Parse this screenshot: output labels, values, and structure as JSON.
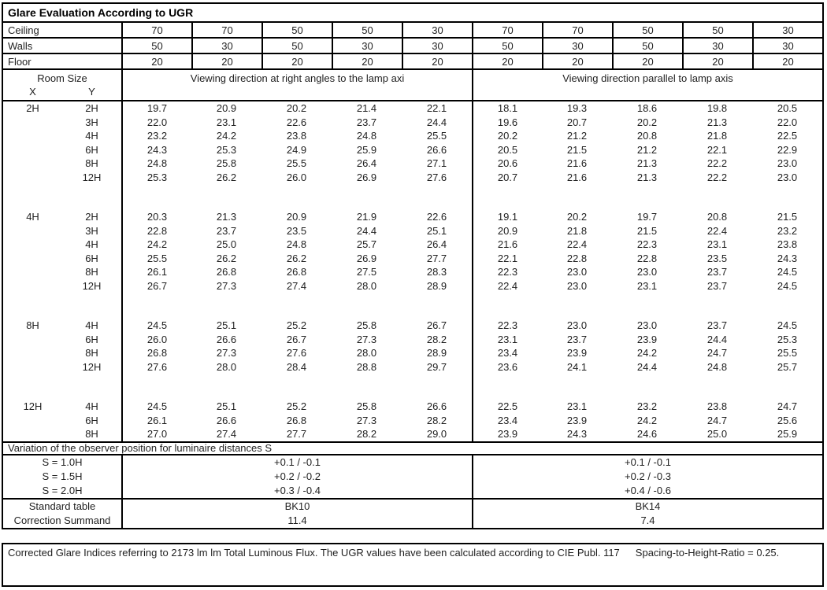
{
  "title": "Glare Evaluation According to UGR",
  "surface_rows": [
    {
      "label": "Ceiling",
      "values": [
        "70",
        "70",
        "50",
        "50",
        "30",
        "70",
        "70",
        "50",
        "50",
        "30"
      ]
    },
    {
      "label": "Walls",
      "values": [
        "50",
        "30",
        "50",
        "30",
        "30",
        "50",
        "30",
        "50",
        "30",
        "30"
      ]
    },
    {
      "label": "Floor",
      "values": [
        "20",
        "20",
        "20",
        "20",
        "20",
        "20",
        "20",
        "20",
        "20",
        "20"
      ]
    }
  ],
  "header": {
    "room_size_label": "Room Size",
    "x_label": "X",
    "y_label": "Y",
    "left_span": "Viewing direction at right angles to the lamp axi",
    "right_span": "Viewing direction parallel to lamp axis"
  },
  "blocks": [
    {
      "x": "2H",
      "rows": [
        {
          "y": "2H",
          "left": [
            "19.7",
            "20.9",
            "20.2",
            "21.4",
            "22.1"
          ],
          "right": [
            "18.1",
            "19.3",
            "18.6",
            "19.8",
            "20.5"
          ]
        },
        {
          "y": "3H",
          "left": [
            "22.0",
            "23.1",
            "22.6",
            "23.7",
            "24.4"
          ],
          "right": [
            "19.6",
            "20.7",
            "20.2",
            "21.3",
            "22.0"
          ]
        },
        {
          "y": "4H",
          "left": [
            "23.2",
            "24.2",
            "23.8",
            "24.8",
            "25.5"
          ],
          "right": [
            "20.2",
            "21.2",
            "20.8",
            "21.8",
            "22.5"
          ]
        },
        {
          "y": "6H",
          "left": [
            "24.3",
            "25.3",
            "24.9",
            "25.9",
            "26.6"
          ],
          "right": [
            "20.5",
            "21.5",
            "21.2",
            "22.1",
            "22.9"
          ]
        },
        {
          "y": "8H",
          "left": [
            "24.8",
            "25.8",
            "25.5",
            "26.4",
            "27.1"
          ],
          "right": [
            "20.6",
            "21.6",
            "21.3",
            "22.2",
            "23.0"
          ]
        },
        {
          "y": "12H",
          "left": [
            "25.3",
            "26.2",
            "26.0",
            "26.9",
            "27.6"
          ],
          "right": [
            "20.7",
            "21.6",
            "21.3",
            "22.2",
            "23.0"
          ]
        }
      ]
    },
    {
      "x": "4H",
      "rows": [
        {
          "y": "2H",
          "left": [
            "20.3",
            "21.3",
            "20.9",
            "21.9",
            "22.6"
          ],
          "right": [
            "19.1",
            "20.2",
            "19.7",
            "20.8",
            "21.5"
          ]
        },
        {
          "y": "3H",
          "left": [
            "22.8",
            "23.7",
            "23.5",
            "24.4",
            "25.1"
          ],
          "right": [
            "20.9",
            "21.8",
            "21.5",
            "22.4",
            "23.2"
          ]
        },
        {
          "y": "4H",
          "left": [
            "24.2",
            "25.0",
            "24.8",
            "25.7",
            "26.4"
          ],
          "right": [
            "21.6",
            "22.4",
            "22.3",
            "23.1",
            "23.8"
          ]
        },
        {
          "y": "6H",
          "left": [
            "25.5",
            "26.2",
            "26.2",
            "26.9",
            "27.7"
          ],
          "right": [
            "22.1",
            "22.8",
            "22.8",
            "23.5",
            "24.3"
          ]
        },
        {
          "y": "8H",
          "left": [
            "26.1",
            "26.8",
            "26.8",
            "27.5",
            "28.3"
          ],
          "right": [
            "22.3",
            "23.0",
            "23.0",
            "23.7",
            "24.5"
          ]
        },
        {
          "y": "12H",
          "left": [
            "26.7",
            "27.3",
            "27.4",
            "28.0",
            "28.9"
          ],
          "right": [
            "22.4",
            "23.0",
            "23.1",
            "23.7",
            "24.5"
          ]
        }
      ]
    },
    {
      "x": "8H",
      "rows": [
        {
          "y": "4H",
          "left": [
            "24.5",
            "25.1",
            "25.2",
            "25.8",
            "26.7"
          ],
          "right": [
            "22.3",
            "23.0",
            "23.0",
            "23.7",
            "24.5"
          ]
        },
        {
          "y": "6H",
          "left": [
            "26.0",
            "26.6",
            "26.7",
            "27.3",
            "28.2"
          ],
          "right": [
            "23.1",
            "23.7",
            "23.9",
            "24.4",
            "25.3"
          ]
        },
        {
          "y": "8H",
          "left": [
            "26.8",
            "27.3",
            "27.6",
            "28.0",
            "28.9"
          ],
          "right": [
            "23.4",
            "23.9",
            "24.2",
            "24.7",
            "25.5"
          ]
        },
        {
          "y": "12H",
          "left": [
            "27.6",
            "28.0",
            "28.4",
            "28.8",
            "29.7"
          ],
          "right": [
            "23.6",
            "24.1",
            "24.4",
            "24.8",
            "25.7"
          ]
        }
      ]
    },
    {
      "x": "12H",
      "rows": [
        {
          "y": "4H",
          "left": [
            "24.5",
            "25.1",
            "25.2",
            "25.8",
            "26.6"
          ],
          "right": [
            "22.5",
            "23.1",
            "23.2",
            "23.8",
            "24.7"
          ]
        },
        {
          "y": "6H",
          "left": [
            "26.1",
            "26.6",
            "26.8",
            "27.3",
            "28.2"
          ],
          "right": [
            "23.4",
            "23.9",
            "24.2",
            "24.7",
            "25.6"
          ]
        },
        {
          "y": "8H",
          "left": [
            "27.0",
            "27.4",
            "27.7",
            "28.2",
            "29.0"
          ],
          "right": [
            "23.9",
            "24.3",
            "24.6",
            "25.0",
            "25.9"
          ]
        }
      ]
    }
  ],
  "variation": {
    "heading": "Variation of the observer position for luminaire distances S",
    "rows": [
      {
        "label": "S = 1.0H",
        "left": "+0.1 / -0.1",
        "right": "+0.1 / -0.1"
      },
      {
        "label": "S = 1.5H",
        "left": "+0.2 / -0.2",
        "right": "+0.2 / -0.3"
      },
      {
        "label": "S = 2.0H",
        "left": "+0.3 / -0.4",
        "right": "+0.4 / -0.6"
      }
    ]
  },
  "summary_rows": [
    {
      "label": "Standard table",
      "left": "BK10",
      "right": "BK14"
    },
    {
      "label": "Correction Summand",
      "left": "11.4",
      "right": "7.4"
    }
  ],
  "footer": {
    "text": "Corrected Glare Indices referring to 2173 lm lm Total Luminous Flux. The UGR values have been calculated according to CIE Publ. 117",
    "ratio": "Spacing-to-Height-Ratio = 0.25."
  },
  "colors": {
    "border": "#000000",
    "text": "#1f1f1f",
    "background": "#ffffff"
  }
}
